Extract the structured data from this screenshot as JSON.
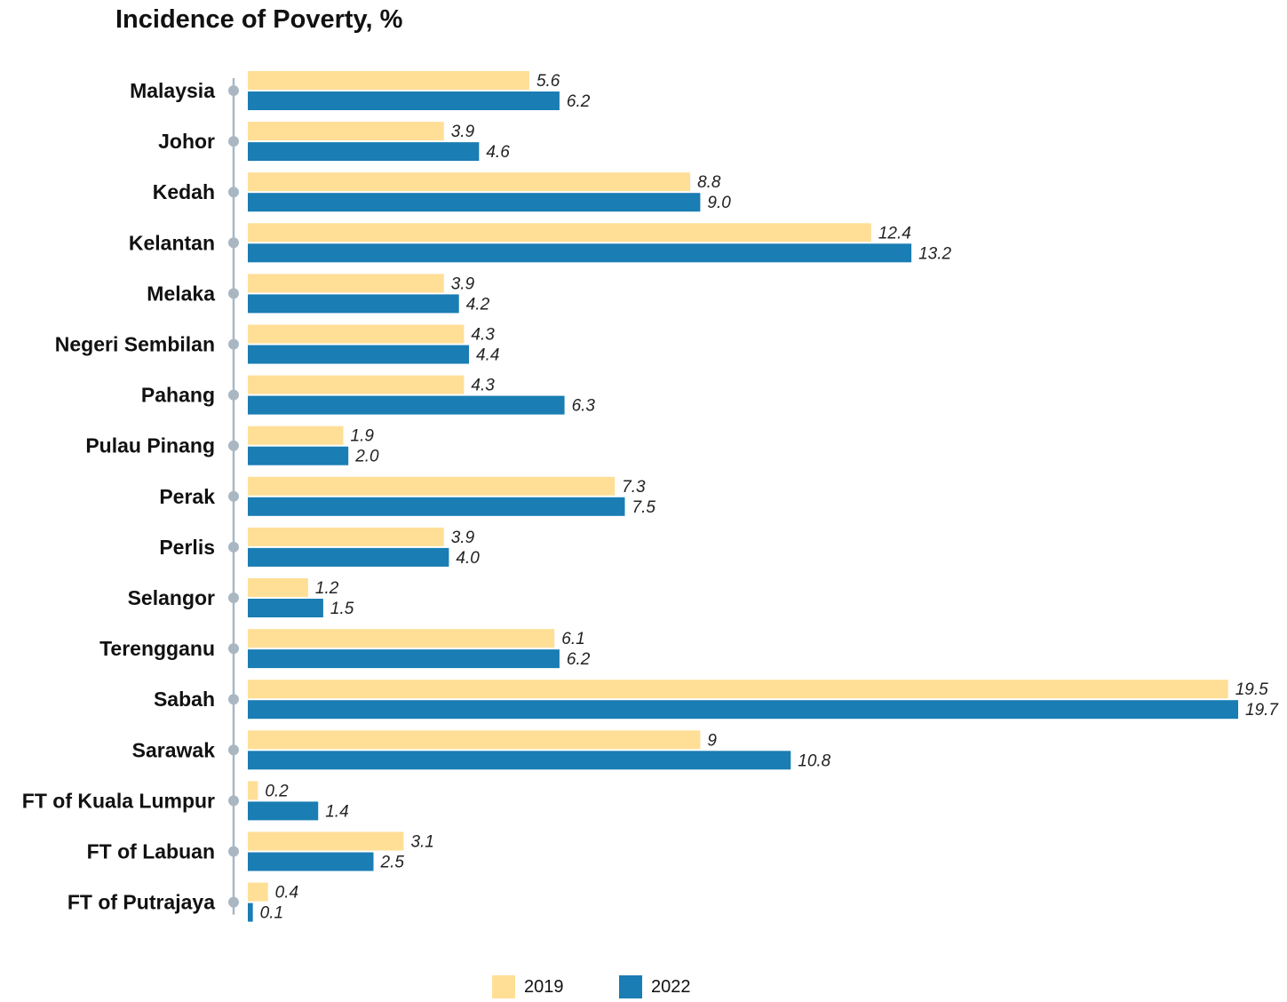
{
  "chart_data": {
    "type": "bar",
    "orientation": "horizontal",
    "title": "Incidence of Poverty, %",
    "categories": [
      "Malaysia",
      "Johor",
      "Kedah",
      "Kelantan",
      "Melaka",
      "Negeri Sembilan",
      "Pahang",
      "Pulau Pinang",
      "Perak",
      "Perlis",
      "Selangor",
      "Terengganu",
      "Sabah",
      "Sarawak",
      "FT of Kuala Lumpur",
      "FT of Labuan",
      "FT of Putrajaya"
    ],
    "series": [
      {
        "name": "2019",
        "color": "#FFDE96",
        "values": [
          5.6,
          3.9,
          8.8,
          12.4,
          3.9,
          4.3,
          4.3,
          1.9,
          7.3,
          3.9,
          1.2,
          6.1,
          19.5,
          9,
          0.2,
          3.1,
          0.4
        ],
        "labels": [
          "5.6",
          "3.9",
          "8.8",
          "12.4",
          "3.9",
          "4.3",
          "4.3",
          "1.9",
          "7.3",
          "3.9",
          "1.2",
          "6.1",
          "19.5",
          "9",
          "0.2",
          "3.1",
          "0.4"
        ]
      },
      {
        "name": "2022",
        "color": "#1A7DB3",
        "values": [
          6.2,
          4.6,
          9.0,
          13.2,
          4.2,
          4.4,
          6.3,
          2.0,
          7.5,
          4.0,
          1.5,
          6.2,
          19.7,
          10.8,
          1.4,
          2.5,
          0.1
        ],
        "labels": [
          "6.2",
          "4.6",
          "9.0",
          "13.2",
          "4.2",
          "4.4",
          "6.3",
          "2.0",
          "7.5",
          "4.0",
          "1.5",
          "6.2",
          "19.7",
          "10.8",
          "1.4",
          "2.5",
          "0.1"
        ]
      }
    ],
    "xlim": [
      0,
      19.7
    ],
    "grid": false,
    "legend_position": "bottom",
    "axis_color": "#A9B7C3"
  }
}
